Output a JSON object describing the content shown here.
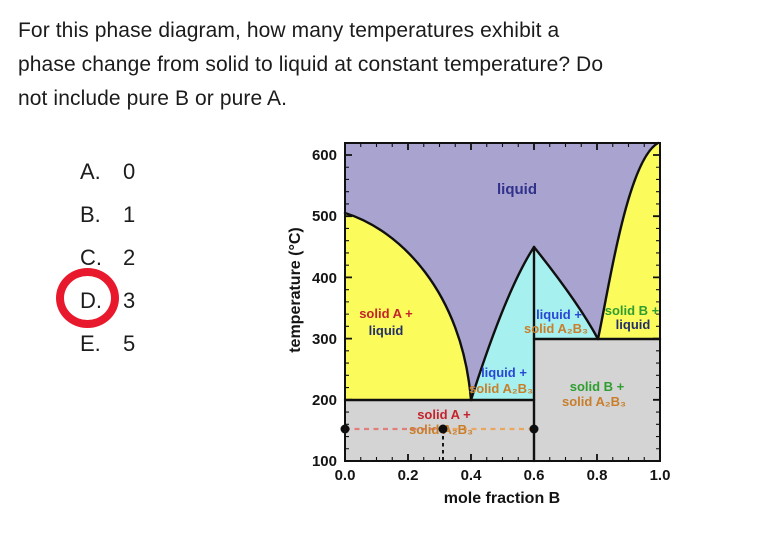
{
  "question": {
    "lines": [
      "For this phase diagram, how many temperatures exhibit a",
      "phase change from solid to liquid at constant temperature? Do",
      "not include pure B or pure A."
    ]
  },
  "options": [
    {
      "letter": "A.",
      "value": "0",
      "selected": false
    },
    {
      "letter": "B.",
      "value": "1",
      "selected": false
    },
    {
      "letter": "C.",
      "value": "2",
      "selected": false
    },
    {
      "letter": "D.",
      "value": "3",
      "selected": true
    },
    {
      "letter": "E.",
      "value": "5",
      "selected": false
    }
  ],
  "answer_annotation": {
    "circled_option": "D",
    "ring_color": "#e8192c"
  },
  "chart_data": {
    "type": "area",
    "subtype": "binary-eutectic-phase-diagram-with-congruent-compound",
    "title": "",
    "xlabel": "mole fraction B",
    "ylabel": "temperature (°C)",
    "xlim": [
      0.0,
      1.0
    ],
    "ylim": [
      100,
      620
    ],
    "grid": false,
    "x_tick_labels": [
      "0.0",
      "0.2",
      "0.4",
      "0.6",
      "0.8",
      "1.0"
    ],
    "y_tick_labels": [
      "600",
      "500",
      "400",
      "300",
      "200",
      "100"
    ],
    "series": [
      {
        "name": "liquidus-A",
        "points": [
          [
            0.0,
            505
          ],
          [
            0.13,
            477
          ],
          [
            0.19,
            450
          ],
          [
            0.25,
            412
          ],
          [
            0.32,
            358
          ],
          [
            0.37,
            293
          ],
          [
            0.4,
            200
          ]
        ]
      },
      {
        "name": "liquidus-A2B3-left",
        "points": [
          [
            0.4,
            200
          ],
          [
            0.44,
            260
          ],
          [
            0.47,
            314
          ],
          [
            0.51,
            368
          ],
          [
            0.56,
            412
          ],
          [
            0.6,
            450
          ]
        ]
      },
      {
        "name": "liquidus-A2B3-right",
        "points": [
          [
            0.6,
            450
          ],
          [
            0.67,
            396
          ],
          [
            0.75,
            342
          ],
          [
            0.8,
            300
          ]
        ]
      },
      {
        "name": "liquidus-B",
        "points": [
          [
            0.8,
            300
          ],
          [
            0.84,
            396
          ],
          [
            0.88,
            478
          ],
          [
            0.91,
            543
          ],
          [
            0.95,
            592
          ],
          [
            0.99,
            620
          ]
        ]
      }
    ],
    "invariant_lines": [
      {
        "name": "eutectic-line-1",
        "temperature_C": 200,
        "x_range": [
          0.0,
          0.6
        ]
      },
      {
        "name": "eutectic-line-2",
        "temperature_C": 300,
        "x_range": [
          0.6,
          1.0
        ]
      },
      {
        "name": "compound-A2B3-line",
        "x": 0.6,
        "T_range": [
          100,
          450
        ]
      }
    ],
    "key_points": {
      "melting_point_A": {
        "x": 0.0,
        "T": 505
      },
      "eutectic_1": {
        "x": 0.4,
        "T": 200
      },
      "compound_congruent_melting": {
        "x": 0.6,
        "T": 450,
        "formula": "A₂B₃"
      },
      "eutectic_2": {
        "x": 0.8,
        "T": 300
      }
    },
    "tie_line": {
      "temperature_C": 150,
      "dots_x": [
        0.0,
        0.31,
        0.6
      ],
      "left_dash_color": "#e07e7e",
      "right_dash_color": "#eaa55f"
    },
    "regions": [
      {
        "name": "liquid",
        "fill": "#a8a4cf",
        "labels": [
          {
            "text": "liquid",
            "color": "#31318c"
          }
        ]
      },
      {
        "name": "solid-A-plus-liquid",
        "fill": "#fbfb5c",
        "labels": [
          {
            "text": "solid A +",
            "color": "#c4232b"
          },
          {
            "text": "liquid",
            "color": "#232f6b"
          }
        ]
      },
      {
        "name": "liquid-plus-solid-A2B3-left",
        "fill": "#a6f1ef",
        "labels": [
          {
            "text": "liquid +",
            "color": "#2a46d4"
          },
          {
            "text": "solid A₂B₃",
            "color": "#c97e2b"
          }
        ]
      },
      {
        "name": "liquid-plus-solid-A2B3-right",
        "fill": "#a6f1ef",
        "labels": [
          {
            "text": "liquid +",
            "color": "#2a46d4"
          },
          {
            "text": "solid A₂B₃",
            "color": "#c97e2b"
          }
        ]
      },
      {
        "name": "solid-B-plus-liquid",
        "fill": "#fbfb5c",
        "labels": [
          {
            "text": "solid B +",
            "color": "#2e9e30"
          },
          {
            "text": "liquid",
            "color": "#232f6b"
          }
        ]
      },
      {
        "name": "solid-A-plus-solid-A2B3",
        "fill": "#d4d4d4",
        "labels": [
          {
            "text": "solid A +",
            "color": "#c4232b"
          },
          {
            "text": "solid A₂B₃",
            "color": "#c97e2b"
          }
        ]
      },
      {
        "name": "solid-B-plus-solid-A2B3",
        "fill": "#d4d4d4",
        "labels": [
          {
            "text": "solid B +",
            "color": "#2e9e30"
          },
          {
            "text": "solid A₂B₃",
            "color": "#c97e2b"
          }
        ]
      }
    ]
  }
}
